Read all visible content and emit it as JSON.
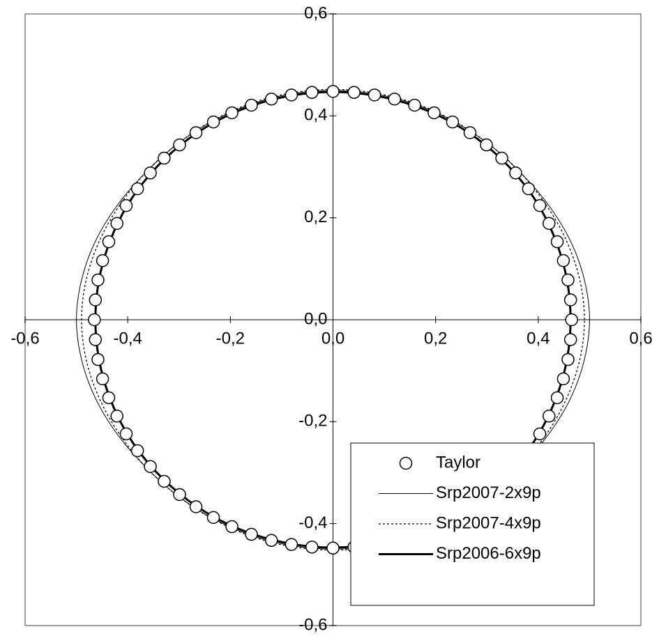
{
  "chart_data": {
    "type": "scatter",
    "xlim": [
      -0.6,
      0.6
    ],
    "ylim": [
      -0.6,
      0.6
    ],
    "xticks": [
      {
        "value": -0.6,
        "label": "-0,6"
      },
      {
        "value": -0.4,
        "label": "-0,4"
      },
      {
        "value": -0.2,
        "label": "-0,2"
      },
      {
        "value": 0,
        "label": "0,0"
      },
      {
        "value": 0.2,
        "label": "0,2"
      },
      {
        "value": 0.4,
        "label": "0,4"
      },
      {
        "value": 0.6,
        "label": "0,6"
      }
    ],
    "yticks": [
      {
        "value": -0.6,
        "label": "-0,6"
      },
      {
        "value": -0.4,
        "label": "-0,4"
      },
      {
        "value": -0.2,
        "label": "-0,2"
      },
      {
        "value": 0,
        "label": "0,0"
      },
      {
        "value": 0.2,
        "label": "0,2"
      },
      {
        "value": 0.4,
        "label": "0,4"
      },
      {
        "value": 0.6,
        "label": "0,6"
      }
    ],
    "legend": "lower right",
    "series": [
      {
        "name": "Taylor",
        "color": "#000000",
        "marker": "circle",
        "line": "none",
        "x": [
          0.465,
          0.463,
          0.458,
          0.449,
          0.437,
          0.421,
          0.403,
          0.381,
          0.356,
          0.329,
          0.299,
          0.267,
          0.233,
          0.197,
          0.159,
          0.12,
          0.081,
          0.041,
          0,
          -0.041,
          -0.081,
          -0.12,
          -0.159,
          -0.197,
          -0.233,
          -0.267,
          -0.299,
          -0.329,
          -0.356,
          -0.381,
          -0.403,
          -0.421,
          -0.437,
          -0.449,
          -0.458,
          -0.463,
          -0.465,
          -0.463,
          -0.458,
          -0.449,
          -0.437,
          -0.421,
          -0.403,
          -0.381,
          -0.356,
          -0.329,
          -0.299,
          -0.267,
          -0.233,
          -0.197,
          -0.159,
          -0.12,
          -0.081,
          -0.041,
          0,
          0.041,
          0.081,
          0.12,
          0.159,
          0.197,
          0.233,
          0.267,
          0.299,
          0.329,
          0.356,
          0.381,
          0.403,
          0.421,
          0.437,
          0.449,
          0.458,
          0.463
        ],
        "y": [
          0,
          0.039,
          0.078,
          0.116,
          0.153,
          0.189,
          0.224,
          0.257,
          0.288,
          0.317,
          0.343,
          0.367,
          0.388,
          0.406,
          0.421,
          0.433,
          0.441,
          0.446,
          0.448,
          0.446,
          0.441,
          0.433,
          0.421,
          0.406,
          0.388,
          0.367,
          0.343,
          0.317,
          0.288,
          0.257,
          0.224,
          0.189,
          0.153,
          0.116,
          0.078,
          0.039,
          0,
          -0.039,
          -0.078,
          -0.116,
          -0.153,
          -0.189,
          -0.224,
          -0.257,
          -0.288,
          -0.317,
          -0.343,
          -0.367,
          -0.388,
          -0.406,
          -0.421,
          -0.433,
          -0.441,
          -0.446,
          -0.448,
          -0.446,
          -0.441,
          -0.433,
          -0.421,
          -0.406,
          -0.388,
          -0.367,
          -0.343,
          -0.317,
          -0.288,
          -0.257,
          -0.224,
          -0.189,
          -0.153,
          -0.116,
          -0.078,
          -0.039
        ]
      },
      {
        "name": "Srp2007-2x9p",
        "color": "#000000",
        "marker": "none",
        "line": "solid",
        "line_width": 1,
        "x": [
          0.5,
          0.49,
          0.463,
          0.42,
          0.365,
          0.303,
          0.234,
          0.159,
          0.081,
          0,
          -0.081,
          -0.159,
          -0.234,
          -0.303,
          -0.365,
          -0.42,
          -0.463,
          -0.49,
          -0.5,
          -0.49,
          -0.463,
          -0.42,
          -0.365,
          -0.303,
          -0.234,
          -0.159,
          -0.081,
          0,
          0.081,
          0.159,
          0.234,
          0.303,
          0.365,
          0.42,
          0.463,
          0.49
        ],
        "y": [
          0,
          0.078,
          0.154,
          0.225,
          0.289,
          0.345,
          0.39,
          0.423,
          0.443,
          0.45,
          0.443,
          0.423,
          0.39,
          0.345,
          0.289,
          0.225,
          0.154,
          0.078,
          0,
          -0.078,
          -0.154,
          -0.225,
          -0.289,
          -0.345,
          -0.39,
          -0.423,
          -0.443,
          -0.45,
          -0.443,
          -0.423,
          -0.39,
          -0.345,
          -0.289,
          -0.225,
          -0.154,
          -0.078
        ]
      },
      {
        "name": "Srp2007-4x9p",
        "color": "#000000",
        "marker": "none",
        "line": "dotted",
        "line_width": 1.3,
        "x": [
          0.49,
          0.481,
          0.455,
          0.415,
          0.363,
          0.302,
          0.234,
          0.159,
          0.081,
          0,
          -0.081,
          -0.159,
          -0.234,
          -0.302,
          -0.363,
          -0.415,
          -0.455,
          -0.481,
          -0.49,
          -0.481,
          -0.455,
          -0.415,
          -0.363,
          -0.302,
          -0.234,
          -0.159,
          -0.081,
          0,
          0.081,
          0.159,
          0.234,
          0.302,
          0.363,
          0.415,
          0.455,
          0.481
        ],
        "y": [
          0,
          0.078,
          0.155,
          0.226,
          0.291,
          0.346,
          0.391,
          0.425,
          0.445,
          0.452,
          0.445,
          0.425,
          0.391,
          0.346,
          0.291,
          0.226,
          0.155,
          0.078,
          0,
          -0.078,
          -0.155,
          -0.226,
          -0.291,
          -0.346,
          -0.391,
          -0.425,
          -0.445,
          -0.452,
          -0.445,
          -0.425,
          -0.391,
          -0.346,
          -0.291,
          -0.226,
          -0.155,
          -0.078
        ]
      },
      {
        "name": "Srp2006-6x9p",
        "color": "#000000",
        "marker": "none",
        "line": "solid",
        "line_width": 3,
        "x": [
          0.463,
          0.456,
          0.435,
          0.401,
          0.355,
          0.298,
          0.232,
          0.158,
          0.08,
          0,
          -0.08,
          -0.158,
          -0.232,
          -0.298,
          -0.355,
          -0.401,
          -0.435,
          -0.456,
          -0.463,
          -0.456,
          -0.435,
          -0.401,
          -0.355,
          -0.298,
          -0.232,
          -0.158,
          -0.08,
          0,
          0.08,
          0.158,
          0.232,
          0.298,
          0.355,
          0.401,
          0.435,
          0.456
        ],
        "y": [
          0,
          0.078,
          0.153,
          0.224,
          0.287,
          0.342,
          0.387,
          0.42,
          0.44,
          0.447,
          0.44,
          0.42,
          0.387,
          0.342,
          0.287,
          0.224,
          0.153,
          0.078,
          0,
          -0.078,
          -0.153,
          -0.224,
          -0.287,
          -0.342,
          -0.387,
          -0.42,
          -0.44,
          -0.447,
          -0.44,
          -0.42,
          -0.387,
          -0.342,
          -0.287,
          -0.224,
          -0.153,
          -0.078
        ]
      }
    ]
  }
}
